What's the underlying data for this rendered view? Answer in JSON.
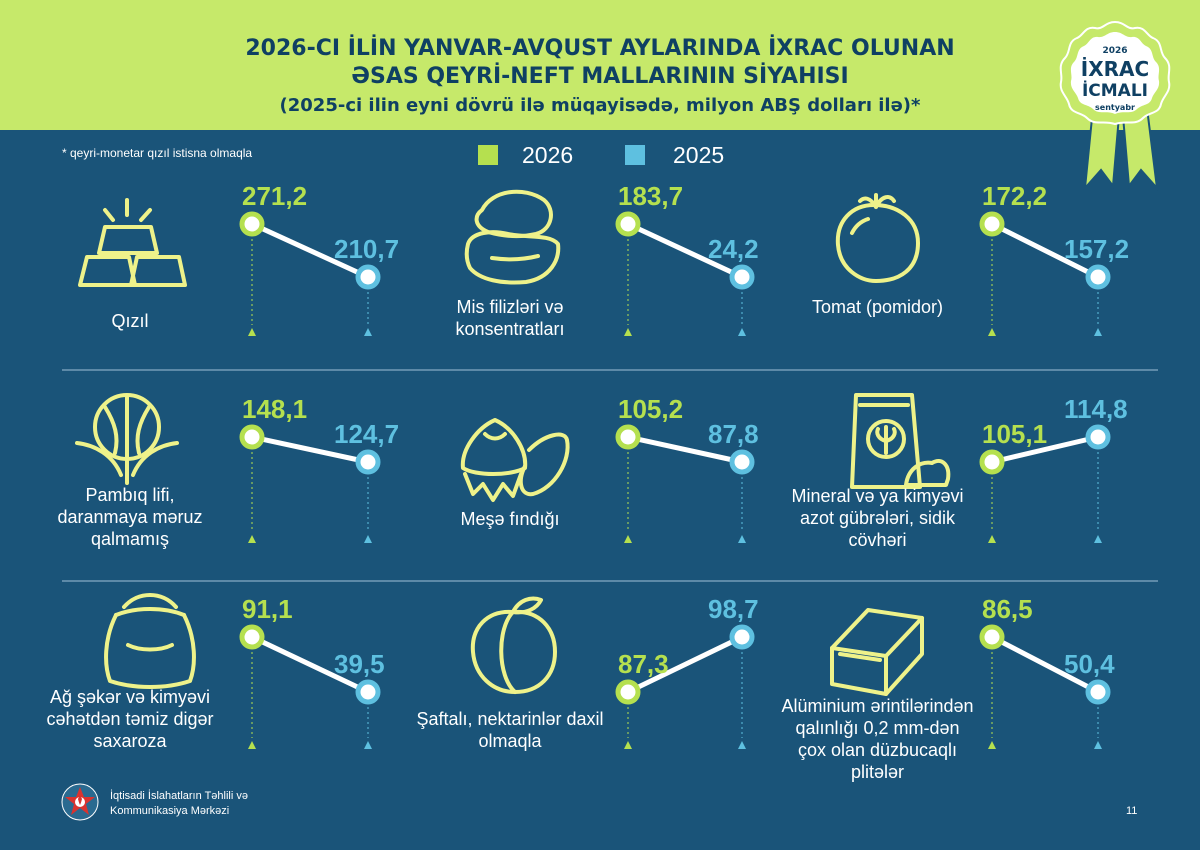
{
  "header": {
    "title_line1": "2026-CI İLİN YANVAR-AVQUST AYLARINDA İXRAC OLUNAN",
    "title_line2": "ƏSAS QEYRİ-NEFT MALLARININ SİYAHISI",
    "subtitle": "(2025-ci ilin eyni dövrü ilə müqayisədə, milyon ABŞ dolları ilə)*"
  },
  "badge": {
    "year": "2026",
    "line1": "İXRAC",
    "line2": "İCMALI",
    "month": "sentyabr"
  },
  "note": "* qeyri-monetar qızıl istisna olmaqla",
  "colors": {
    "header_bg": "#c6e96a",
    "page_bg": "#1a5479",
    "green": "#b5e04f",
    "blue": "#5ec0e0",
    "title": "#0f4063"
  },
  "chart_data": {
    "type": "slope",
    "series": [
      {
        "name": "2026",
        "color": "#b5e04f"
      },
      {
        "name": "2025",
        "color": "#5ec0e0"
      }
    ],
    "items": [
      {
        "label": "Qızıl",
        "icon": "gold-bars-icon",
        "v2026": 271.2,
        "v2025": 210.7,
        "t2026": "271,2",
        "t2025": "210,7"
      },
      {
        "label": "Mis filizləri və konsentratları",
        "icon": "copper-ore-icon",
        "v2026": 183.7,
        "v2025": 24.2,
        "t2026": "183,7",
        "t2025": "24,2"
      },
      {
        "label": "Tomat (pomidor)",
        "icon": "tomato-icon",
        "v2026": 172.2,
        "v2025": 157.2,
        "t2026": "172,2",
        "t2025": "157,2"
      },
      {
        "label": "Pambıq lifi, daranmaya məruz qalmamış",
        "icon": "cotton-icon",
        "v2026": 148.1,
        "v2025": 124.7,
        "t2026": "148,1",
        "t2025": "124,7"
      },
      {
        "label": "Meşə fındığı",
        "icon": "hazelnut-icon",
        "v2026": 105.2,
        "v2025": 87.8,
        "t2026": "105,2",
        "t2025": "87,8"
      },
      {
        "label": "Mineral və ya kimyəvi azot gübrələri, sidik cövhəri",
        "icon": "fertilizer-bag-icon",
        "v2026": 105.1,
        "v2025": 114.8,
        "t2026": "105,1",
        "t2025": "114,8"
      },
      {
        "label": "Ağ şəkər və kimyəvi cəhətdən təmiz digər saxaroza",
        "icon": "sugar-sack-icon",
        "v2026": 91.1,
        "v2025": 39.5,
        "t2026": "91,1",
        "t2025": "39,5"
      },
      {
        "label": "Şaftalı, nektarinlər daxil olmaqla",
        "icon": "peach-icon",
        "v2026": 87.3,
        "v2025": 98.7,
        "t2026": "87,3",
        "t2025": "98,7"
      },
      {
        "label": "Alüminium ərintilərindən qalınlığı 0,2 mm-dən çox olan düzbucaqlı plitələr",
        "icon": "aluminium-plate-icon",
        "v2026": 86.5,
        "v2025": 50.4,
        "t2026": "86,5",
        "t2025": "50,4"
      }
    ]
  },
  "footer": {
    "line1": "İqtisadi İslahatların Təhlili və",
    "line2": "Kommunikasiya Mərkəzi",
    "page": "11"
  }
}
